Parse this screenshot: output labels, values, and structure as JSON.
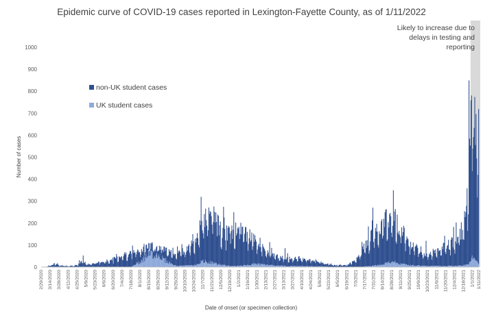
{
  "chart_data": {
    "type": "bar",
    "stacked": true,
    "title": "Epidemic curve of COVID-19 cases reported in Lexington-Fayette County, as of 1/11/2022",
    "xlabel": "Date of onset (or specimen collection)",
    "ylabel": "Number of cases",
    "ylim": [
      0,
      1000
    ],
    "yticks": [
      0,
      100,
      200,
      300,
      400,
      500,
      600,
      700,
      800,
      900,
      1000
    ],
    "x_range": [
      "2/29/2020",
      "1/11/2022"
    ],
    "xticks": [
      "2/29/2020",
      "3/14/2020",
      "3/28/2020",
      "4/11/2020",
      "4/25/2020",
      "5/9/2020",
      "5/23/2020",
      "6/6/2020",
      "6/20/2020",
      "7/4/2020",
      "7/18/2020",
      "8/1/2020",
      "8/15/2020",
      "8/29/2020",
      "9/12/2020",
      "9/26/2020",
      "10/10/2020",
      "10/24/2020",
      "11/7/2020",
      "11/21/2020",
      "12/5/2020",
      "12/19/2020",
      "1/2/2021",
      "1/16/2021",
      "1/30/2021",
      "2/13/2021",
      "2/27/2021",
      "3/13/2021",
      "3/27/2021",
      "4/10/2021",
      "4/24/2021",
      "5/8/2021",
      "5/22/2021",
      "6/5/2021",
      "6/19/2021",
      "7/3/2021",
      "7/17/2021",
      "7/31/2021",
      "8/14/2021",
      "8/28/2021",
      "9/11/2021",
      "9/25/2021",
      "10/9/2021",
      "10/23/2021",
      "11/6/2021",
      "11/20/2021",
      "12/4/2021",
      "12/18/2021",
      "1/1/2022",
      "1/11/2022"
    ],
    "legend": "left",
    "series": [
      {
        "name": "non-UK student cases",
        "color": "#2F4F8F"
      },
      {
        "name": "UK student cases",
        "color": "#8EA9DB"
      }
    ],
    "keypoints": {
      "non-UK student cases": [
        [
          "2/29/2020",
          0
        ],
        [
          "3/10/2020",
          3
        ],
        [
          "3/20/2020",
          15
        ],
        [
          "3/28/2020",
          8
        ],
        [
          "4/11/2020",
          5
        ],
        [
          "4/25/2020",
          8
        ],
        [
          "5/3/2020",
          30
        ],
        [
          "5/9/2020",
          12
        ],
        [
          "5/23/2020",
          18
        ],
        [
          "6/6/2020",
          25
        ],
        [
          "6/20/2020",
          35
        ],
        [
          "7/4/2020",
          55
        ],
        [
          "7/18/2020",
          65
        ],
        [
          "8/1/2020",
          50
        ],
        [
          "8/15/2020",
          35
        ],
        [
          "8/29/2020",
          40
        ],
        [
          "9/12/2020",
          45
        ],
        [
          "9/26/2020",
          60
        ],
        [
          "10/10/2020",
          70
        ],
        [
          "10/24/2020",
          100
        ],
        [
          "11/7/2020",
          180
        ],
        [
          "11/21/2020",
          230
        ],
        [
          "12/5/2020",
          160
        ],
        [
          "12/19/2020",
          150
        ],
        [
          "1/2/2021",
          170
        ],
        [
          "1/16/2021",
          140
        ],
        [
          "1/30/2021",
          100
        ],
        [
          "2/13/2021",
          60
        ],
        [
          "2/27/2021",
          45
        ],
        [
          "3/13/2021",
          40
        ],
        [
          "3/27/2021",
          35
        ],
        [
          "4/10/2021",
          35
        ],
        [
          "4/24/2021",
          30
        ],
        [
          "5/8/2021",
          20
        ],
        [
          "5/22/2021",
          12
        ],
        [
          "6/5/2021",
          8
        ],
        [
          "6/19/2021",
          8
        ],
        [
          "7/3/2021",
          30
        ],
        [
          "7/17/2021",
          90
        ],
        [
          "7/31/2021",
          150
        ],
        [
          "8/14/2021",
          190
        ],
        [
          "8/28/2021",
          210
        ],
        [
          "9/11/2021",
          170
        ],
        [
          "9/25/2021",
          110
        ],
        [
          "10/9/2021",
          70
        ],
        [
          "10/23/2021",
          55
        ],
        [
          "11/6/2021",
          65
        ],
        [
          "11/20/2021",
          90
        ],
        [
          "12/4/2021",
          110
        ],
        [
          "12/18/2021",
          170
        ],
        [
          "12/25/2021",
          300
        ],
        [
          "1/1/2022",
          700
        ],
        [
          "1/11/2022",
          450
        ]
      ],
      "UK student cases": [
        [
          "2/29/2020",
          0
        ],
        [
          "7/18/2020",
          0
        ],
        [
          "8/1/2020",
          25
        ],
        [
          "8/15/2020",
          60
        ],
        [
          "8/29/2020",
          55
        ],
        [
          "9/12/2020",
          25
        ],
        [
          "9/26/2020",
          5
        ],
        [
          "10/24/2020",
          8
        ],
        [
          "11/7/2020",
          25
        ],
        [
          "11/21/2020",
          20
        ],
        [
          "12/5/2020",
          10
        ],
        [
          "12/19/2020",
          5
        ],
        [
          "1/2/2021",
          5
        ],
        [
          "1/16/2021",
          10
        ],
        [
          "1/30/2021",
          15
        ],
        [
          "2/13/2021",
          10
        ],
        [
          "3/13/2021",
          5
        ],
        [
          "5/8/2021",
          3
        ],
        [
          "6/5/2021",
          0
        ],
        [
          "7/17/2021",
          2
        ],
        [
          "8/14/2021",
          10
        ],
        [
          "8/28/2021",
          25
        ],
        [
          "9/11/2021",
          15
        ],
        [
          "9/25/2021",
          8
        ],
        [
          "10/23/2021",
          5
        ],
        [
          "12/4/2021",
          5
        ],
        [
          "12/25/2021",
          10
        ],
        [
          "1/1/2022",
          40
        ],
        [
          "1/11/2022",
          20
        ]
      ]
    },
    "shaded_region": {
      "start": "12/29/2021",
      "end": "1/11/2022",
      "color": "#D9D9D9"
    },
    "annotation": [
      "Likely to increase due to",
      "delays in testing and",
      "reporting"
    ]
  }
}
